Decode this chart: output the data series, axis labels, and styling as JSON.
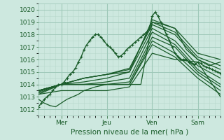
{
  "bg_color": "#cde8df",
  "grid_major_color": "#9ec8b8",
  "grid_minor_color": "#b8d8cc",
  "line_color": "#1a5c2a",
  "xlabel": "Pression niveau de la mer( hPa )",
  "tick_color": "#1a5c2a",
  "ylim": [
    1011.5,
    1020.5
  ],
  "yticks": [
    1012,
    1013,
    1014,
    1015,
    1016,
    1017,
    1018,
    1019,
    1020
  ],
  "day_labels": [
    "Mer",
    "Jeu",
    "Ven",
    "Sam"
  ],
  "day_positions": [
    24,
    72,
    120,
    168
  ],
  "xlim": [
    0,
    192
  ],
  "series": [
    {
      "points": [
        [
          0,
          1012.2
        ],
        [
          3,
          1012.5
        ],
        [
          6,
          1012.8
        ],
        [
          9,
          1013.0
        ],
        [
          12,
          1013.2
        ],
        [
          15,
          1013.5
        ],
        [
          18,
          1013.8
        ],
        [
          21,
          1014.0
        ],
        [
          24,
          1014.0
        ],
        [
          27,
          1014.2
        ],
        [
          30,
          1014.5
        ],
        [
          33,
          1014.8
        ],
        [
          36,
          1015.0
        ],
        [
          39,
          1015.3
        ],
        [
          42,
          1015.8
        ],
        [
          45,
          1016.2
        ],
        [
          48,
          1016.8
        ],
        [
          51,
          1017.2
        ],
        [
          54,
          1017.5
        ],
        [
          57,
          1017.8
        ],
        [
          60,
          1018.0
        ],
        [
          63,
          1018.0
        ],
        [
          66,
          1017.8
        ],
        [
          69,
          1017.5
        ],
        [
          72,
          1017.2
        ],
        [
          75,
          1017.0
        ],
        [
          78,
          1016.8
        ],
        [
          81,
          1016.5
        ],
        [
          84,
          1016.2
        ],
        [
          87,
          1016.3
        ],
        [
          90,
          1016.5
        ],
        [
          93,
          1016.8
        ],
        [
          96,
          1017.0
        ],
        [
          99,
          1017.2
        ],
        [
          102,
          1017.4
        ],
        [
          105,
          1017.6
        ],
        [
          108,
          1017.8
        ],
        [
          111,
          1018.0
        ],
        [
          114,
          1018.2
        ],
        [
          117,
          1018.5
        ],
        [
          120,
          1019.5
        ],
        [
          123,
          1019.8
        ],
        [
          126,
          1019.5
        ],
        [
          129,
          1019.0
        ],
        [
          132,
          1018.5
        ],
        [
          135,
          1018.0
        ],
        [
          138,
          1017.5
        ],
        [
          141,
          1017.0
        ],
        [
          144,
          1016.5
        ],
        [
          147,
          1016.2
        ],
        [
          150,
          1016.0
        ],
        [
          153,
          1016.0
        ],
        [
          156,
          1016.0
        ],
        [
          159,
          1015.8
        ],
        [
          162,
          1015.7
        ],
        [
          165,
          1015.6
        ],
        [
          168,
          1015.8
        ],
        [
          171,
          1015.7
        ],
        [
          174,
          1015.5
        ],
        [
          177,
          1015.4
        ],
        [
          180,
          1015.3
        ],
        [
          183,
          1015.2
        ],
        [
          186,
          1015.1
        ],
        [
          189,
          1015.0
        ],
        [
          192,
          1014.9
        ]
      ],
      "marker": true,
      "lw": 1.0
    },
    {
      "points": [
        [
          0,
          1013.2
        ],
        [
          24,
          1014.0
        ],
        [
          48,
          1014.5
        ],
        [
          72,
          1014.8
        ],
        [
          96,
          1015.0
        ],
        [
          120,
          1019.2
        ],
        [
          144,
          1018.5
        ],
        [
          168,
          1016.5
        ],
        [
          192,
          1016.0
        ]
      ],
      "marker": false,
      "lw": 0.9
    },
    {
      "points": [
        [
          0,
          1013.3
        ],
        [
          24,
          1014.0
        ],
        [
          48,
          1014.5
        ],
        [
          72,
          1014.8
        ],
        [
          96,
          1015.2
        ],
        [
          120,
          1019.0
        ],
        [
          144,
          1018.2
        ],
        [
          168,
          1016.2
        ],
        [
          192,
          1015.5
        ]
      ],
      "marker": false,
      "lw": 0.9
    },
    {
      "points": [
        [
          0,
          1013.4
        ],
        [
          24,
          1014.0
        ],
        [
          48,
          1014.5
        ],
        [
          72,
          1014.8
        ],
        [
          96,
          1015.3
        ],
        [
          120,
          1018.8
        ],
        [
          144,
          1018.0
        ],
        [
          168,
          1016.0
        ],
        [
          192,
          1015.2
        ]
      ],
      "marker": false,
      "lw": 0.9
    },
    {
      "points": [
        [
          0,
          1013.5
        ],
        [
          24,
          1014.0
        ],
        [
          48,
          1014.2
        ],
        [
          72,
          1014.5
        ],
        [
          96,
          1015.0
        ],
        [
          120,
          1018.5
        ],
        [
          144,
          1017.5
        ],
        [
          168,
          1015.5
        ],
        [
          192,
          1014.5
        ]
      ],
      "marker": false,
      "lw": 0.9
    },
    {
      "points": [
        [
          0,
          1013.5
        ],
        [
          24,
          1014.0
        ],
        [
          48,
          1014.0
        ],
        [
          72,
          1014.2
        ],
        [
          96,
          1014.5
        ],
        [
          120,
          1018.2
        ],
        [
          144,
          1017.2
        ],
        [
          168,
          1015.2
        ],
        [
          192,
          1014.0
        ]
      ],
      "marker": false,
      "lw": 0.9
    },
    {
      "points": [
        [
          0,
          1013.5
        ],
        [
          24,
          1014.0
        ],
        [
          48,
          1014.0
        ],
        [
          72,
          1014.0
        ],
        [
          96,
          1014.2
        ],
        [
          120,
          1017.8
        ],
        [
          144,
          1017.0
        ],
        [
          168,
          1015.0
        ],
        [
          192,
          1013.8
        ]
      ],
      "marker": false,
      "lw": 0.9
    },
    {
      "points": [
        [
          0,
          1013.5
        ],
        [
          24,
          1014.0
        ],
        [
          48,
          1014.0
        ],
        [
          72,
          1014.0
        ],
        [
          96,
          1014.0
        ],
        [
          120,
          1017.5
        ],
        [
          144,
          1016.5
        ],
        [
          168,
          1014.8
        ],
        [
          192,
          1013.5
        ]
      ],
      "marker": false,
      "lw": 0.9
    },
    {
      "points": [
        [
          0,
          1013.5
        ],
        [
          24,
          1014.0
        ],
        [
          48,
          1014.0
        ],
        [
          72,
          1014.0
        ],
        [
          96,
          1014.0
        ],
        [
          120,
          1017.2
        ],
        [
          144,
          1016.2
        ],
        [
          168,
          1014.5
        ],
        [
          192,
          1013.2
        ]
      ],
      "marker": false,
      "lw": 0.9
    },
    {
      "points": [
        [
          0,
          1013.2
        ],
        [
          24,
          1013.5
        ],
        [
          48,
          1013.5
        ],
        [
          72,
          1013.5
        ],
        [
          96,
          1013.8
        ],
        [
          120,
          1016.5
        ],
        [
          144,
          1016.0
        ],
        [
          168,
          1015.8
        ],
        [
          192,
          1013.0
        ]
      ],
      "marker": false,
      "lw": 0.9
    },
    {
      "points": [
        [
          0,
          1012.8
        ],
        [
          6,
          1012.5
        ],
        [
          12,
          1012.3
        ],
        [
          18,
          1012.2
        ],
        [
          24,
          1012.5
        ],
        [
          30,
          1012.8
        ],
        [
          36,
          1013.0
        ],
        [
          42,
          1013.2
        ],
        [
          48,
          1013.5
        ],
        [
          60,
          1013.8
        ],
        [
          72,
          1014.0
        ],
        [
          84,
          1014.0
        ],
        [
          96,
          1014.0
        ],
        [
          108,
          1014.0
        ],
        [
          120,
          1019.0
        ],
        [
          132,
          1018.8
        ],
        [
          144,
          1018.5
        ],
        [
          156,
          1016.8
        ],
        [
          168,
          1016.0
        ],
        [
          180,
          1015.5
        ],
        [
          192,
          1015.8
        ]
      ],
      "marker": false,
      "lw": 0.9
    }
  ]
}
